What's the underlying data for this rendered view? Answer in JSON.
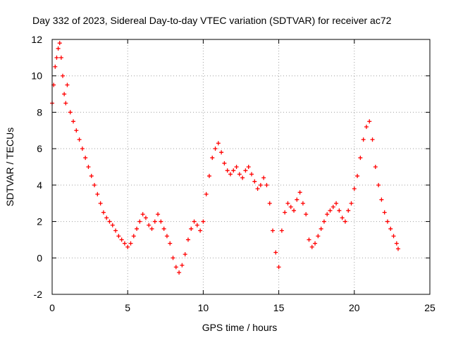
{
  "chart_data": {
    "type": "scatter",
    "title": "Day 332 of 2023, Sidereal Day-to-day VTEC variation (SDTVAR) for receiver ac72",
    "xlabel": "GPS time / hours",
    "ylabel": "SDTVAR / TECUs",
    "xlim": [
      0,
      25
    ],
    "ylim": [
      -2,
      12
    ],
    "xticks": [
      0,
      5,
      10,
      15,
      20,
      25
    ],
    "yticks": [
      -2,
      0,
      2,
      4,
      6,
      8,
      10,
      12
    ],
    "grid": true,
    "marker": "+",
    "color": "#ff0000",
    "series": [
      {
        "name": "SDTVAR",
        "x": [
          0.0,
          0.1,
          0.2,
          0.3,
          0.4,
          0.5,
          0.6,
          0.7,
          0.8,
          0.9,
          1.0,
          1.2,
          1.4,
          1.6,
          1.8,
          2.0,
          2.2,
          2.4,
          2.6,
          2.8,
          3.0,
          3.2,
          3.4,
          3.6,
          3.8,
          4.0,
          4.2,
          4.4,
          4.6,
          4.8,
          5.0,
          5.2,
          5.4,
          5.6,
          5.8,
          6.0,
          6.2,
          6.4,
          6.6,
          6.8,
          7.0,
          7.2,
          7.4,
          7.6,
          7.8,
          8.0,
          8.2,
          8.4,
          8.6,
          8.8,
          9.0,
          9.2,
          9.4,
          9.6,
          9.8,
          10.0,
          10.2,
          10.4,
          10.6,
          10.8,
          11.0,
          11.2,
          11.4,
          11.6,
          11.8,
          12.0,
          12.2,
          12.4,
          12.6,
          12.8,
          13.0,
          13.2,
          13.4,
          13.6,
          13.8,
          14.0,
          14.2,
          14.4,
          14.6,
          14.8,
          15.0,
          15.2,
          15.4,
          15.6,
          15.8,
          16.0,
          16.2,
          16.4,
          16.6,
          16.8,
          17.0,
          17.2,
          17.4,
          17.6,
          17.8,
          18.0,
          18.2,
          18.4,
          18.6,
          18.8,
          19.0,
          19.2,
          19.4,
          19.6,
          19.8,
          20.0,
          20.2,
          20.4,
          20.6,
          20.8,
          21.0,
          21.2,
          21.4,
          21.6,
          21.8,
          22.0,
          22.2,
          22.4,
          22.6,
          22.8,
          22.9
        ],
        "y": [
          8.5,
          9.5,
          10.5,
          11.0,
          11.5,
          11.8,
          11.0,
          10.0,
          9.0,
          8.5,
          9.5,
          8.0,
          7.5,
          7.0,
          6.5,
          6.0,
          5.5,
          5.0,
          4.5,
          4.0,
          3.5,
          3.0,
          2.5,
          2.2,
          2.0,
          1.8,
          1.5,
          1.2,
          1.0,
          0.8,
          0.6,
          0.8,
          1.2,
          1.6,
          2.0,
          2.4,
          2.2,
          1.8,
          1.6,
          2.0,
          2.4,
          2.0,
          1.6,
          1.2,
          0.8,
          0.0,
          -0.5,
          -0.8,
          -0.4,
          0.2,
          1.0,
          1.6,
          2.0,
          1.8,
          1.5,
          2.0,
          3.5,
          4.5,
          5.5,
          6.0,
          6.3,
          5.8,
          5.2,
          4.8,
          4.6,
          4.8,
          5.0,
          4.6,
          4.4,
          4.8,
          5.0,
          4.6,
          4.2,
          3.8,
          4.0,
          4.4,
          4.0,
          3.0,
          1.5,
          0.3,
          -0.5,
          1.5,
          2.5,
          3.0,
          2.8,
          2.6,
          3.2,
          3.6,
          3.0,
          2.4,
          1.0,
          0.6,
          0.8,
          1.2,
          1.6,
          2.0,
          2.4,
          2.6,
          2.8,
          3.0,
          2.6,
          2.2,
          2.0,
          2.6,
          3.0,
          3.8,
          4.5,
          5.5,
          6.5,
          7.2,
          7.5,
          6.5,
          5.0,
          4.0,
          3.2,
          2.5,
          2.0,
          1.6,
          1.2,
          0.8,
          0.5
        ]
      }
    ]
  }
}
